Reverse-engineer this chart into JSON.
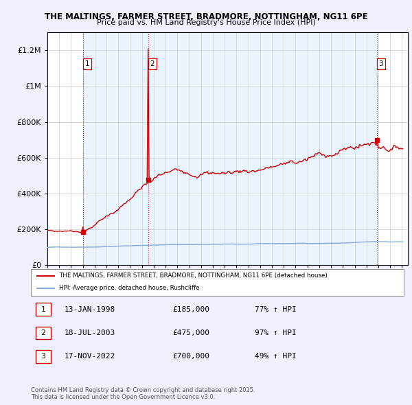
{
  "title1": "THE MALTINGS, FARMER STREET, BRADMORE, NOTTINGHAM, NG11 6PE",
  "title2": "Price paid vs. HM Land Registry's House Price Index (HPI)",
  "ylim": [
    0,
    1300000
  ],
  "yticks": [
    0,
    200000,
    400000,
    600000,
    800000,
    1000000,
    1200000
  ],
  "sale_color": "#cc0000",
  "hpi_color": "#88aadd",
  "shade_color": "#ddeeff",
  "dashed_color": "#cc0000",
  "sales": [
    {
      "date_num": 1998.04,
      "price": 185000,
      "label": "1"
    },
    {
      "date_num": 2003.54,
      "price": 475000,
      "label": "2"
    },
    {
      "date_num": 2022.88,
      "price": 700000,
      "label": "3"
    }
  ],
  "legend_line1": "THE MALTINGS, FARMER STREET, BRADMORE, NOTTINGHAM, NG11 6PE (detached house)",
  "legend_line2": "HPI: Average price, detached house, Rushcliffe",
  "table_entries": [
    {
      "num": "1",
      "date": "13-JAN-1998",
      "price": "£185,000",
      "hpi": "77% ↑ HPI"
    },
    {
      "num": "2",
      "date": "18-JUL-2003",
      "price": "£475,000",
      "hpi": "97% ↑ HPI"
    },
    {
      "num": "3",
      "date": "17-NOV-2022",
      "price": "£700,000",
      "hpi": "49% ↑ HPI"
    }
  ],
  "footnote": "Contains HM Land Registry data © Crown copyright and database right 2025.\nThis data is licensed under the Open Government Licence v3.0.",
  "background_color": "#f0f0ff",
  "plot_bg_color": "#ffffff"
}
